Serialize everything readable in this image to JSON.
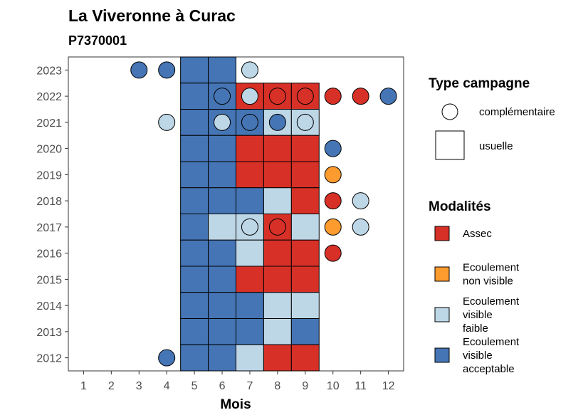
{
  "chart_data": {
    "type": "heatmap",
    "title": "La Viveronne à Curac",
    "subtitle": "P7370001",
    "xlabel": "Mois",
    "ylabel": "",
    "x_categories": [
      "1",
      "2",
      "3",
      "4",
      "5",
      "6",
      "7",
      "8",
      "9",
      "10",
      "11",
      "12"
    ],
    "y_categories": [
      "2012",
      "2013",
      "2014",
      "2015",
      "2016",
      "2017",
      "2018",
      "2019",
      "2020",
      "2021",
      "2022",
      "2023"
    ],
    "grid": false,
    "legend_position": "right",
    "colors": {
      "Assec": "#d73027",
      "Ecoulement non visible": "#fd9b2f",
      "Ecoulement visible faible": "#bdd7e7",
      "Ecoulement visible acceptable": "#4575b4"
    },
    "legend": {
      "campaign": {
        "title": "Type campagne",
        "items": [
          {
            "key": "complementaire",
            "label": "complémentaire",
            "shape": "circle"
          },
          {
            "key": "usuelle",
            "label": "usuelle",
            "shape": "square"
          }
        ]
      },
      "modalites": {
        "title": "Modalités",
        "items": [
          {
            "key": "Assec",
            "lines": [
              "Assec"
            ]
          },
          {
            "key": "Ecoulement non visible",
            "lines": [
              "Ecoulement",
              "non visible"
            ]
          },
          {
            "key": "Ecoulement visible faible",
            "lines": [
              "Ecoulement",
              "visible",
              "faible"
            ]
          },
          {
            "key": "Ecoulement visible acceptable",
            "lines": [
              "Ecoulement",
              "visible",
              "acceptable"
            ]
          }
        ]
      }
    },
    "usuelle": [
      {
        "year": "2023",
        "month": 5,
        "value": "Ecoulement visible acceptable"
      },
      {
        "year": "2023",
        "month": 6,
        "value": "Ecoulement visible acceptable"
      },
      {
        "year": "2022",
        "month": 5,
        "value": "Ecoulement visible acceptable"
      },
      {
        "year": "2022",
        "month": 6,
        "value": "Ecoulement visible acceptable"
      },
      {
        "year": "2022",
        "month": 7,
        "value": "Assec"
      },
      {
        "year": "2022",
        "month": 8,
        "value": "Assec"
      },
      {
        "year": "2022",
        "month": 9,
        "value": "Assec"
      },
      {
        "year": "2021",
        "month": 5,
        "value": "Ecoulement visible acceptable"
      },
      {
        "year": "2021",
        "month": 6,
        "value": "Ecoulement visible acceptable"
      },
      {
        "year": "2021",
        "month": 7,
        "value": "Ecoulement visible acceptable"
      },
      {
        "year": "2021",
        "month": 8,
        "value": "Ecoulement visible faible"
      },
      {
        "year": "2021",
        "month": 9,
        "value": "Ecoulement visible faible"
      },
      {
        "year": "2020",
        "month": 5,
        "value": "Ecoulement visible acceptable"
      },
      {
        "year": "2020",
        "month": 6,
        "value": "Ecoulement visible acceptable"
      },
      {
        "year": "2020",
        "month": 7,
        "value": "Assec"
      },
      {
        "year": "2020",
        "month": 8,
        "value": "Assec"
      },
      {
        "year": "2020",
        "month": 9,
        "value": "Assec"
      },
      {
        "year": "2019",
        "month": 5,
        "value": "Ecoulement visible acceptable"
      },
      {
        "year": "2019",
        "month": 6,
        "value": "Ecoulement visible acceptable"
      },
      {
        "year": "2019",
        "month": 7,
        "value": "Assec"
      },
      {
        "year": "2019",
        "month": 8,
        "value": "Assec"
      },
      {
        "year": "2019",
        "month": 9,
        "value": "Assec"
      },
      {
        "year": "2018",
        "month": 5,
        "value": "Ecoulement visible acceptable"
      },
      {
        "year": "2018",
        "month": 6,
        "value": "Ecoulement visible acceptable"
      },
      {
        "year": "2018",
        "month": 7,
        "value": "Ecoulement visible acceptable"
      },
      {
        "year": "2018",
        "month": 8,
        "value": "Ecoulement visible faible"
      },
      {
        "year": "2018",
        "month": 9,
        "value": "Assec"
      },
      {
        "year": "2017",
        "month": 5,
        "value": "Ecoulement visible acceptable"
      },
      {
        "year": "2017",
        "month": 6,
        "value": "Ecoulement visible faible"
      },
      {
        "year": "2017",
        "month": 7,
        "value": "Ecoulement visible faible"
      },
      {
        "year": "2017",
        "month": 8,
        "value": "Assec"
      },
      {
        "year": "2017",
        "month": 9,
        "value": "Ecoulement visible faible"
      },
      {
        "year": "2016",
        "month": 5,
        "value": "Ecoulement visible acceptable"
      },
      {
        "year": "2016",
        "month": 6,
        "value": "Ecoulement visible acceptable"
      },
      {
        "year": "2016",
        "month": 7,
        "value": "Ecoulement visible faible"
      },
      {
        "year": "2016",
        "month": 8,
        "value": "Assec"
      },
      {
        "year": "2016",
        "month": 9,
        "value": "Assec"
      },
      {
        "year": "2015",
        "month": 5,
        "value": "Ecoulement visible acceptable"
      },
      {
        "year": "2015",
        "month": 6,
        "value": "Ecoulement visible acceptable"
      },
      {
        "year": "2015",
        "month": 7,
        "value": "Assec"
      },
      {
        "year": "2015",
        "month": 8,
        "value": "Assec"
      },
      {
        "year": "2015",
        "month": 9,
        "value": "Assec"
      },
      {
        "year": "2014",
        "month": 5,
        "value": "Ecoulement visible acceptable"
      },
      {
        "year": "2014",
        "month": 6,
        "value": "Ecoulement visible acceptable"
      },
      {
        "year": "2014",
        "month": 7,
        "value": "Ecoulement visible acceptable"
      },
      {
        "year": "2014",
        "month": 8,
        "value": "Ecoulement visible faible"
      },
      {
        "year": "2014",
        "month": 9,
        "value": "Ecoulement visible faible"
      },
      {
        "year": "2013",
        "month": 5,
        "value": "Ecoulement visible acceptable"
      },
      {
        "year": "2013",
        "month": 6,
        "value": "Ecoulement visible acceptable"
      },
      {
        "year": "2013",
        "month": 7,
        "value": "Ecoulement visible acceptable"
      },
      {
        "year": "2013",
        "month": 8,
        "value": "Ecoulement visible faible"
      },
      {
        "year": "2013",
        "month": 9,
        "value": "Ecoulement visible acceptable"
      },
      {
        "year": "2012",
        "month": 5,
        "value": "Ecoulement visible acceptable"
      },
      {
        "year": "2012",
        "month": 6,
        "value": "Ecoulement visible acceptable"
      },
      {
        "year": "2012",
        "month": 7,
        "value": "Ecoulement visible faible"
      },
      {
        "year": "2012",
        "month": 8,
        "value": "Assec"
      },
      {
        "year": "2012",
        "month": 9,
        "value": "Assec"
      }
    ],
    "complementaire": [
      {
        "year": "2023",
        "month": 3,
        "value": "Ecoulement visible acceptable"
      },
      {
        "year": "2023",
        "month": 4,
        "value": "Ecoulement visible acceptable"
      },
      {
        "year": "2023",
        "month": 7,
        "value": "Ecoulement visible faible"
      },
      {
        "year": "2022",
        "month": 6,
        "value": "Ecoulement visible acceptable"
      },
      {
        "year": "2022",
        "month": 7,
        "value": "Ecoulement visible faible"
      },
      {
        "year": "2022",
        "month": 8,
        "value": "Assec"
      },
      {
        "year": "2022",
        "month": 9,
        "value": "Assec"
      },
      {
        "year": "2022",
        "month": 10,
        "value": "Assec"
      },
      {
        "year": "2022",
        "month": 11,
        "value": "Assec"
      },
      {
        "year": "2022",
        "month": 12,
        "value": "Ecoulement visible acceptable"
      },
      {
        "year": "2021",
        "month": 4,
        "value": "Ecoulement visible faible"
      },
      {
        "year": "2021",
        "month": 6,
        "value": "Ecoulement visible faible"
      },
      {
        "year": "2021",
        "month": 7,
        "value": "Ecoulement visible acceptable"
      },
      {
        "year": "2021",
        "month": 8,
        "value": "Ecoulement visible acceptable"
      },
      {
        "year": "2021",
        "month": 9,
        "value": "Ecoulement visible faible"
      },
      {
        "year": "2020",
        "month": 10,
        "value": "Ecoulement visible acceptable"
      },
      {
        "year": "2019",
        "month": 10,
        "value": "Ecoulement non visible"
      },
      {
        "year": "2018",
        "month": 10,
        "value": "Assec"
      },
      {
        "year": "2018",
        "month": 11,
        "value": "Ecoulement visible faible"
      },
      {
        "year": "2017",
        "month": 7,
        "value": "Ecoulement visible faible"
      },
      {
        "year": "2017",
        "month": 8,
        "value": "Assec"
      },
      {
        "year": "2017",
        "month": 10,
        "value": "Ecoulement non visible"
      },
      {
        "year": "2017",
        "month": 11,
        "value": "Ecoulement visible faible"
      },
      {
        "year": "2016",
        "month": 10,
        "value": "Assec"
      },
      {
        "year": "2012",
        "month": 4,
        "value": "Ecoulement visible acceptable"
      }
    ]
  }
}
